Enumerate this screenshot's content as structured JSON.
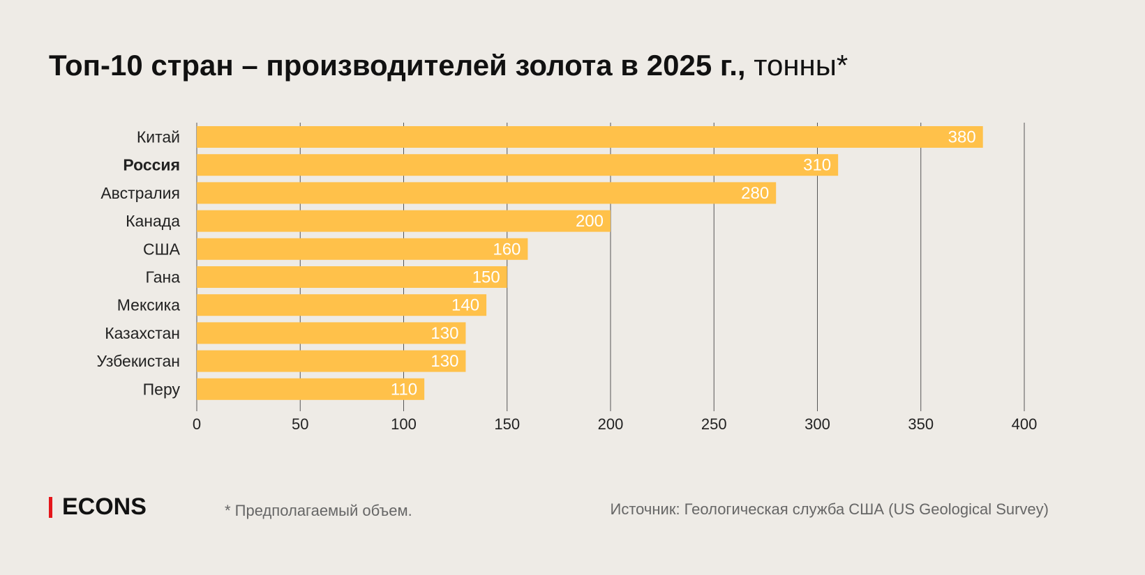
{
  "title": {
    "bold": "Топ-10 стран – производителей золота в 2025 г.,",
    "unit": " тонны*"
  },
  "chart_data": {
    "type": "bar",
    "orientation": "horizontal",
    "title": "Топ-10 стран – производителей золота в 2025 г., тонны*",
    "categories": [
      "Китай",
      "Россия",
      "Австралия",
      "Канада",
      "США",
      "Гана",
      "Мексика",
      "Казахстан",
      "Узбекистан",
      "Перу"
    ],
    "highlighted_category": "Россия",
    "values": [
      380,
      310,
      280,
      200,
      160,
      150,
      140,
      130,
      130,
      110
    ],
    "xlim": [
      0,
      400
    ],
    "xticks": [
      0,
      50,
      100,
      150,
      200,
      250,
      300,
      350,
      400
    ],
    "grid": "vertical",
    "bar_color": "#ffc14a",
    "label_color": "#ffffff"
  },
  "footer": {
    "logo": "ECONS",
    "logo_color": "#e4161b",
    "note": "* Предполагаемый объем.",
    "source": "Источник: Геологическая служба США (US Geological Survey)"
  }
}
